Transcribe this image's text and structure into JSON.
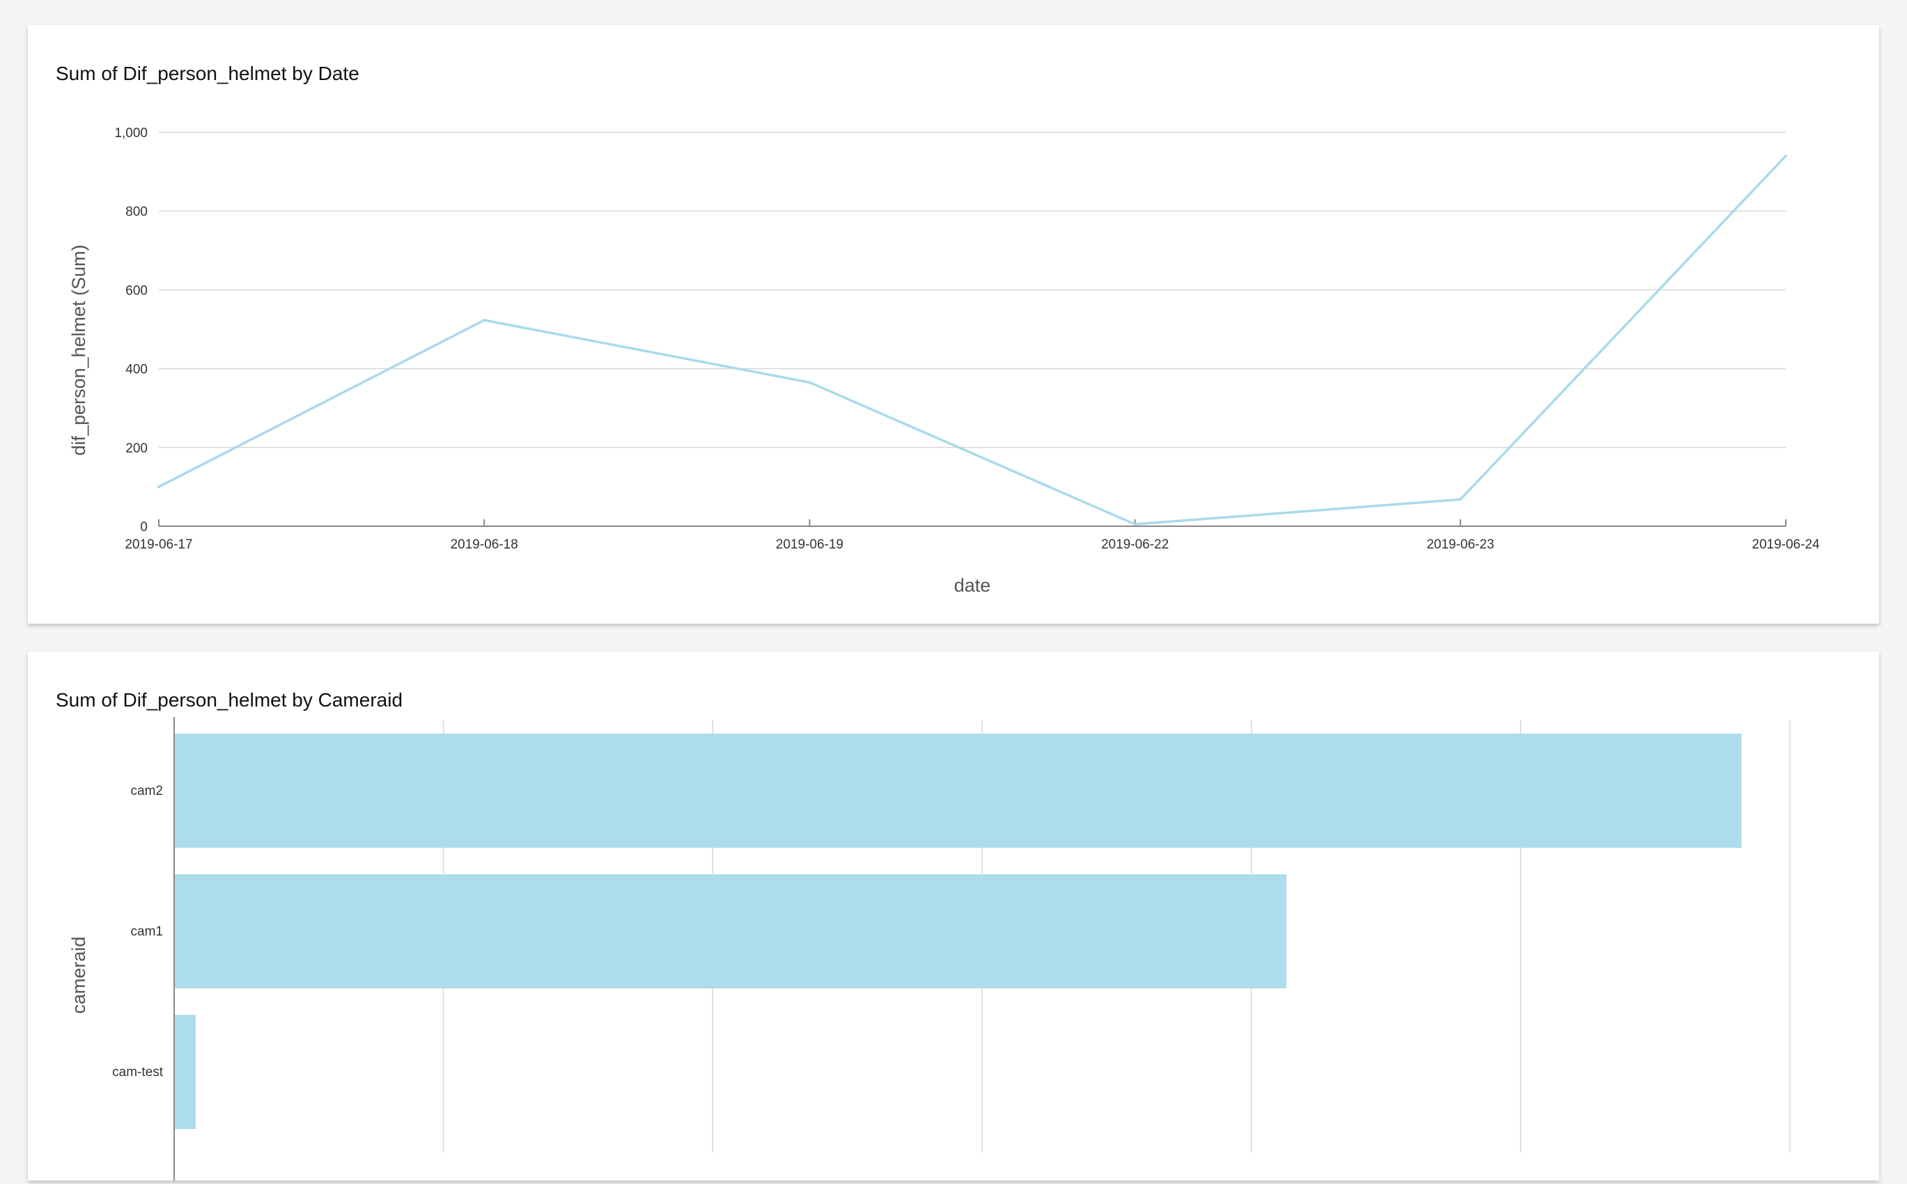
{
  "colors": {
    "page_background": "#f5f5f5",
    "card_background": "#ffffff",
    "series": "#a8dbea",
    "bar": "#addcec",
    "grid": "#d8d8d8"
  },
  "chart_data": [
    {
      "type": "line",
      "title": "Sum of Dif_person_helmet by Date",
      "xlabel": "date",
      "ylabel": "dif_person_helmet (Sum)",
      "x": [
        "2019-06-17",
        "2019-06-18",
        "2019-06-19",
        "2019-06-22",
        "2019-06-23",
        "2019-06-24"
      ],
      "ylim": [
        0,
        1000
      ],
      "yticks": [
        0,
        200,
        400,
        600,
        800,
        1000
      ],
      "ytick_labels": [
        "0",
        "200",
        "400",
        "600",
        "800",
        "1,000"
      ],
      "grid": true,
      "legend": "none",
      "series": [
        {
          "values": [
            100,
            523,
            365,
            5,
            68,
            940
          ]
        }
      ]
    },
    {
      "type": "bar",
      "orientation": "horizontal",
      "title": "Sum of Dif_person_helmet by Cameraid",
      "ylabel": "cameraid",
      "xlabel": "",
      "categories": [
        "cam2",
        "cam1",
        "cam-test"
      ],
      "values": [
        1164,
        826,
        16
      ],
      "xlim": [
        0,
        1200
      ],
      "xticks": [
        0,
        200,
        400,
        600,
        800,
        1000,
        1200
      ],
      "grid": true,
      "legend": "none"
    }
  ]
}
